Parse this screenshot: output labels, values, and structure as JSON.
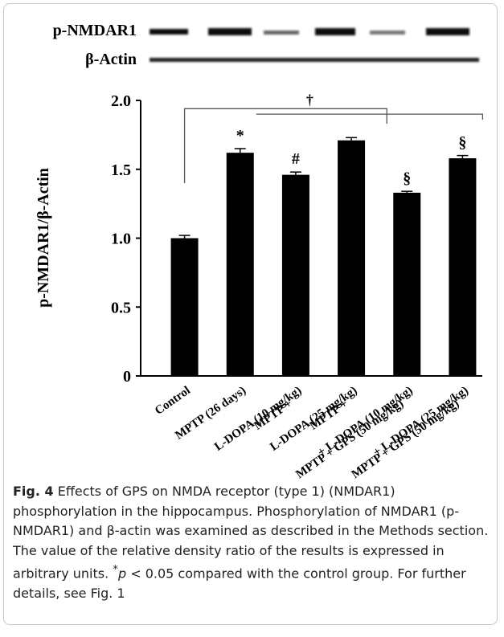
{
  "chart_data": {
    "type": "bar",
    "blot_labels": [
      "p-NMDAR1",
      "β-Actin"
    ],
    "ylabel": "p-NMDAR1/β-Actin",
    "categories": [
      [
        "Control"
      ],
      [
        "MPTP (26 days)"
      ],
      [
        "MPTP +",
        "L-DOPA (10 mg/kg)"
      ],
      [
        "MPTP +",
        "L-DOPA (25 mg/kg)"
      ],
      [
        "MPTP + GPS (50 mg/kg)",
        "+ L-DOPA (10 mg/kg)"
      ],
      [
        "MPTP + GPS (50 mg/kg)",
        "+ L-DOPA (25 mg/kg)"
      ]
    ],
    "values": [
      1.0,
      1.62,
      1.46,
      1.71,
      1.33,
      1.58
    ],
    "errors": [
      0.02,
      0.03,
      0.02,
      0.02,
      0.01,
      0.02
    ],
    "bar_annotations": [
      null,
      "*",
      "#",
      null,
      "§",
      "§"
    ],
    "bracket_label": "†",
    "color": "#000000",
    "ylim": [
      0,
      2
    ],
    "yticks": [
      0,
      0.5,
      {
        "value": 1,
        "label": "1.0"
      },
      1.5,
      {
        "value": 2,
        "label": "2.0"
      }
    ]
  },
  "caption": {
    "label": "Fig. 4",
    "text_before": " Effects of GPS on NMDA receptor (type 1) (NMDAR1) phosphorylation in the hippocampus. Phosphorylation of NMDAR1 (p-NMDAR1) and β-actin was examined as described in the Methods section. The value of the relative density ratio of the results is expressed in arbitrary units. ",
    "superscript": "*",
    "italic": "p",
    "text_after": " < 0.05 compared with the control group. For further details, see Fig. 1"
  }
}
